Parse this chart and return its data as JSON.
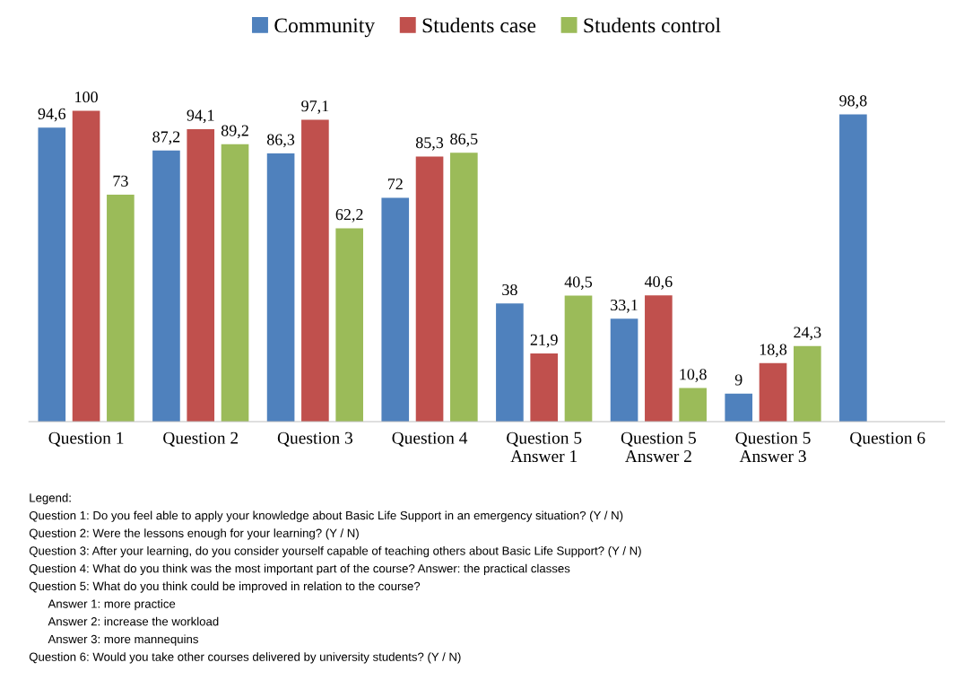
{
  "chart_data": {
    "type": "bar",
    "categories": [
      "Question 1",
      "Question 2",
      "Question 3",
      "Question 4",
      "Question 5\nAnswer 1",
      "Question 5\nAnswer 2",
      "Question 5\nAnswer 3",
      "Question 6"
    ],
    "series": [
      {
        "name": "Community",
        "color": "#4f81bd",
        "values": [
          94.6,
          87.2,
          86.3,
          72,
          38,
          33.1,
          9,
          98.8
        ],
        "value_labels": [
          "94,6",
          "87,2",
          "86,3",
          "72",
          "38",
          "33,1",
          "9",
          "98,8"
        ]
      },
      {
        "name": "Students case",
        "color": "#c0504d",
        "values": [
          100,
          94.1,
          97.1,
          85.3,
          21.9,
          40.6,
          18.8,
          null
        ],
        "value_labels": [
          "100",
          "94,1",
          "97,1",
          "85,3",
          "21,9",
          "40,6",
          "18,8",
          null
        ]
      },
      {
        "name": "Students control",
        "color": "#9bbb59",
        "values": [
          73,
          89.2,
          62.2,
          86.5,
          40.5,
          10.8,
          24.3,
          null
        ],
        "value_labels": [
          "73",
          "89,2",
          "62,2",
          "86,5",
          "40,5",
          "10,8",
          "24,3",
          null
        ]
      }
    ],
    "legend": "top",
    "grid": false,
    "annotations": [
      "Legend:",
      "Question 1: Do you feel able to apply your knowledge about Basic Life Support in an emergency situation? (Y / N)",
      "Question 2: Were the lessons enough for your learning? (Y / N)",
      "Question 3: After your learning, do you consider yourself capable of teaching others about Basic Life Support? (Y / N)",
      "Question 4: What do you think was the most important part of the course? Answer: the practical classes",
      "Question 5: What do you think could be improved in relation to the course?",
      "      Answer 1: more practice",
      "      Answer 2: increase the workload",
      "      Answer 3: more mannequins",
      "Question 6: Would you take other courses delivered by university students? (Y / N)"
    ]
  }
}
